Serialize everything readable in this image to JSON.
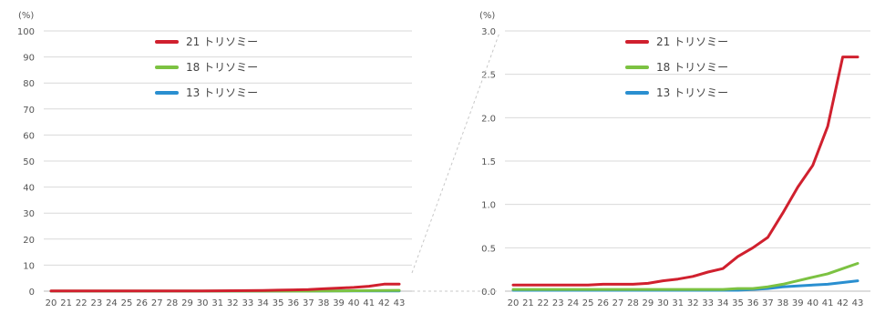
{
  "chart_data": [
    {
      "type": "line",
      "unit_label": "(%)",
      "x": [
        20,
        21,
        22,
        23,
        24,
        25,
        26,
        27,
        28,
        29,
        30,
        31,
        32,
        33,
        34,
        35,
        36,
        37,
        38,
        39,
        40,
        41,
        42,
        43
      ],
      "xticks": [
        "20",
        "21",
        "22",
        "23",
        "24",
        "25",
        "26",
        "27",
        "28",
        "29",
        "30",
        "31",
        "32",
        "33",
        "34",
        "35",
        "36",
        "37",
        "38",
        "39",
        "40",
        "41",
        "42",
        "43"
      ],
      "ylim": [
        0,
        100
      ],
      "yticks": [
        "0",
        "10",
        "20",
        "30",
        "40",
        "50",
        "60",
        "70",
        "80",
        "90",
        "100"
      ],
      "grid": true,
      "legend_position": "top-center",
      "series": [
        {
          "name": "21 トリソミー",
          "color": "#d0202e",
          "values": [
            0.07,
            0.07,
            0.07,
            0.07,
            0.07,
            0.07,
            0.08,
            0.08,
            0.08,
            0.09,
            0.12,
            0.14,
            0.17,
            0.22,
            0.26,
            0.4,
            0.5,
            0.62,
            0.9,
            1.2,
            1.45,
            1.9,
            2.7,
            2.7
          ]
        },
        {
          "name": "18 トリソミー",
          "color": "#7cc242",
          "values": [
            0.02,
            0.02,
            0.02,
            0.02,
            0.02,
            0.02,
            0.02,
            0.02,
            0.02,
            0.02,
            0.02,
            0.02,
            0.02,
            0.02,
            0.02,
            0.03,
            0.03,
            0.05,
            0.08,
            0.12,
            0.16,
            0.2,
            0.26,
            0.32
          ]
        },
        {
          "name": "13 トリソミー",
          "color": "#2a8fd0",
          "values": [
            0.01,
            0.01,
            0.01,
            0.01,
            0.01,
            0.01,
            0.01,
            0.01,
            0.01,
            0.01,
            0.01,
            0.01,
            0.01,
            0.01,
            0.01,
            0.01,
            0.02,
            0.03,
            0.05,
            0.06,
            0.07,
            0.08,
            0.1,
            0.12
          ]
        }
      ]
    },
    {
      "type": "line",
      "unit_label": "(%)",
      "x": [
        20,
        21,
        22,
        23,
        24,
        25,
        26,
        27,
        28,
        29,
        30,
        31,
        32,
        33,
        34,
        35,
        36,
        37,
        38,
        39,
        40,
        41,
        42,
        43
      ],
      "xticks": [
        "20",
        "21",
        "22",
        "23",
        "24",
        "25",
        "26",
        "27",
        "28",
        "29",
        "30",
        "31",
        "32",
        "33",
        "34",
        "35",
        "36",
        "37",
        "38",
        "39",
        "40",
        "41",
        "42",
        "43"
      ],
      "ylim": [
        0,
        3.0
      ],
      "yticks": [
        "0.0",
        "0.5",
        "1.0",
        "1.5",
        "2.0",
        "2.5",
        "3.0"
      ],
      "grid": true,
      "legend_position": "top-center",
      "series": [
        {
          "name": "21 トリソミー",
          "color": "#d0202e",
          "values": [
            0.07,
            0.07,
            0.07,
            0.07,
            0.07,
            0.07,
            0.08,
            0.08,
            0.08,
            0.09,
            0.12,
            0.14,
            0.17,
            0.22,
            0.26,
            0.4,
            0.5,
            0.62,
            0.9,
            1.2,
            1.45,
            1.9,
            2.7,
            2.7
          ]
        },
        {
          "name": "18 トリソミー",
          "color": "#7cc242",
          "values": [
            0.02,
            0.02,
            0.02,
            0.02,
            0.02,
            0.02,
            0.02,
            0.02,
            0.02,
            0.02,
            0.02,
            0.02,
            0.02,
            0.02,
            0.02,
            0.03,
            0.03,
            0.05,
            0.08,
            0.12,
            0.16,
            0.2,
            0.26,
            0.32
          ]
        },
        {
          "name": "13 トリソミー",
          "color": "#2a8fd0",
          "values": [
            0.01,
            0.01,
            0.01,
            0.01,
            0.01,
            0.01,
            0.01,
            0.01,
            0.01,
            0.01,
            0.01,
            0.01,
            0.01,
            0.01,
            0.01,
            0.01,
            0.02,
            0.03,
            0.05,
            0.06,
            0.07,
            0.08,
            0.1,
            0.12
          ]
        }
      ]
    }
  ]
}
